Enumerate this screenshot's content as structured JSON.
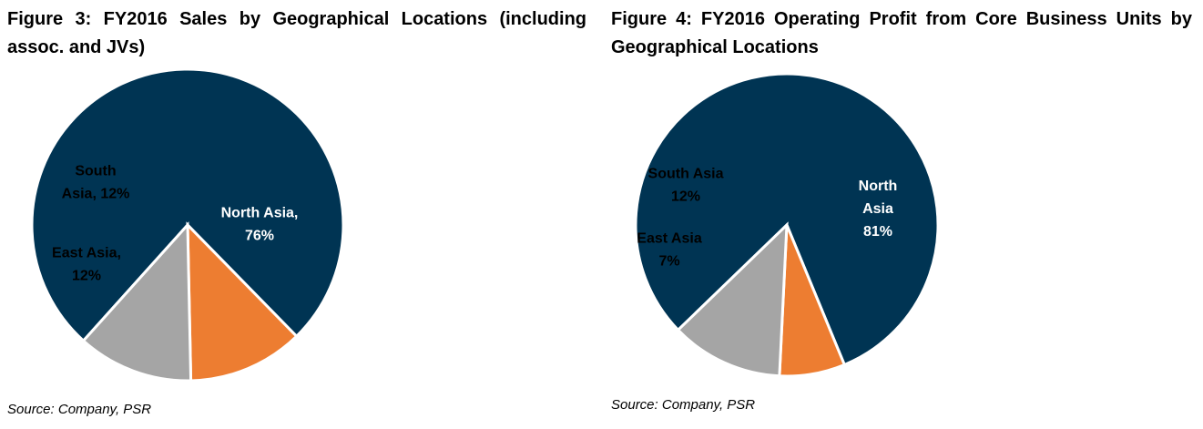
{
  "chart_data": [
    {
      "type": "pie",
      "title": "Figure 3: FY2016 Sales by Geographical Locations (including assoc. and JVs)",
      "source": "Source: Company, PSR",
      "colors": {
        "north": "#003453",
        "east": "#ED7D31",
        "south": "#A5A5A5"
      },
      "slices": [
        {
          "name": "North Asia",
          "value": 76,
          "label_lines": [
            "North Asia,",
            "76%"
          ],
          "color": "#003453",
          "text_color": "#ffffff"
        },
        {
          "name": "East Asia",
          "value": 12,
          "label_lines": [
            "East Asia,",
            "12%"
          ],
          "color": "#ED7D31",
          "text_color": "#000000"
        },
        {
          "name": "South Asia",
          "value": 12,
          "label_lines": [
            "South",
            "Asia, 12%"
          ],
          "color": "#A5A5A5",
          "text_color": "#000000"
        }
      ]
    },
    {
      "type": "pie",
      "title": "Figure 4: FY2016 Operating Profit from Core Business Units by Geographical Locations",
      "source": "Source: Company, PSR",
      "colors": {
        "north": "#003453",
        "east": "#ED7D31",
        "south": "#A5A5A5"
      },
      "slices": [
        {
          "name": "North Asia",
          "value": 81,
          "label_lines": [
            "North",
            "Asia",
            "81%"
          ],
          "color": "#003453",
          "text_color": "#ffffff"
        },
        {
          "name": "East Asia",
          "value": 7,
          "label_lines": [
            "East Asia",
            "7%"
          ],
          "color": "#ED7D31",
          "text_color": "#000000"
        },
        {
          "name": "South Asia",
          "value": 12,
          "label_lines": [
            "South Asia",
            "12%"
          ],
          "color": "#A5A5A5",
          "text_color": "#000000"
        }
      ]
    }
  ]
}
